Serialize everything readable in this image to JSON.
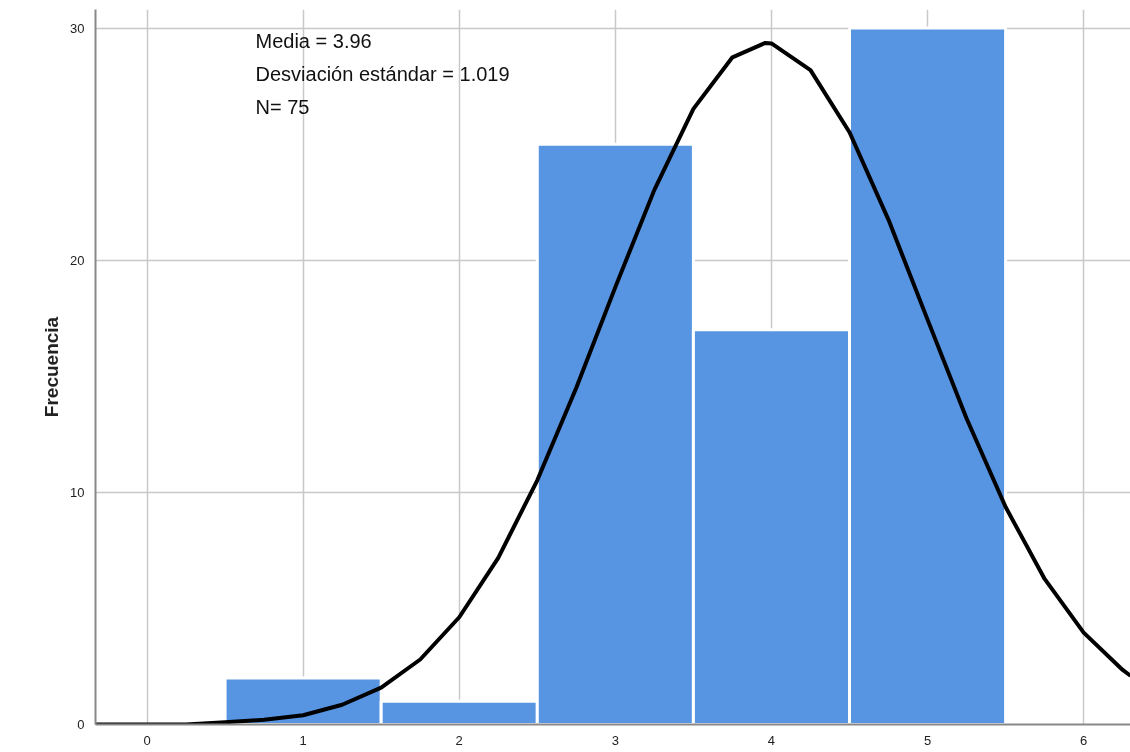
{
  "chart_data": {
    "type": "histogram",
    "ylabel": "Frecuencia",
    "annotations": [
      "Media = 3.96",
      "Desviación estándar = 1.019",
      "N= 75"
    ],
    "bins": [
      0.5,
      1.5,
      2.5,
      3.5,
      4.5,
      5.5
    ],
    "values": [
      2,
      1,
      25,
      17,
      30
    ],
    "color": "#5795e3",
    "series": [
      {
        "type": "line",
        "color": "#000000",
        "x": [
          -0.33,
          0,
          0.25,
          0.5,
          0.75,
          1,
          1.25,
          1.5,
          1.75,
          2,
          2.25,
          2.5,
          2.75,
          3,
          3.25,
          3.5,
          3.75,
          3.96,
          4,
          4.25,
          4.5,
          4.75,
          5,
          5.25,
          5.5,
          5.75,
          6,
          6.25,
          6.3
        ],
        "values": [
          0,
          0,
          0,
          0.1,
          0.2,
          0.4,
          0.85,
          1.59,
          2.8,
          4.62,
          7.18,
          10.52,
          14.51,
          18.84,
          23.03,
          26.52,
          28.74,
          29.36,
          29.34,
          28.19,
          25.51,
          21.74,
          17.44,
          13.18,
          9.37,
          6.27,
          3.96,
          2.35,
          2.1
        ]
      }
    ],
    "xlim": [
      -0.33,
      6.3
    ],
    "ylim": [
      0,
      30.8
    ],
    "xticks": [
      0,
      1,
      2,
      3,
      4,
      5,
      6
    ],
    "yticks": [
      0,
      10,
      20,
      30
    ],
    "grid": true,
    "line_style": "solid",
    "marker": "none"
  }
}
